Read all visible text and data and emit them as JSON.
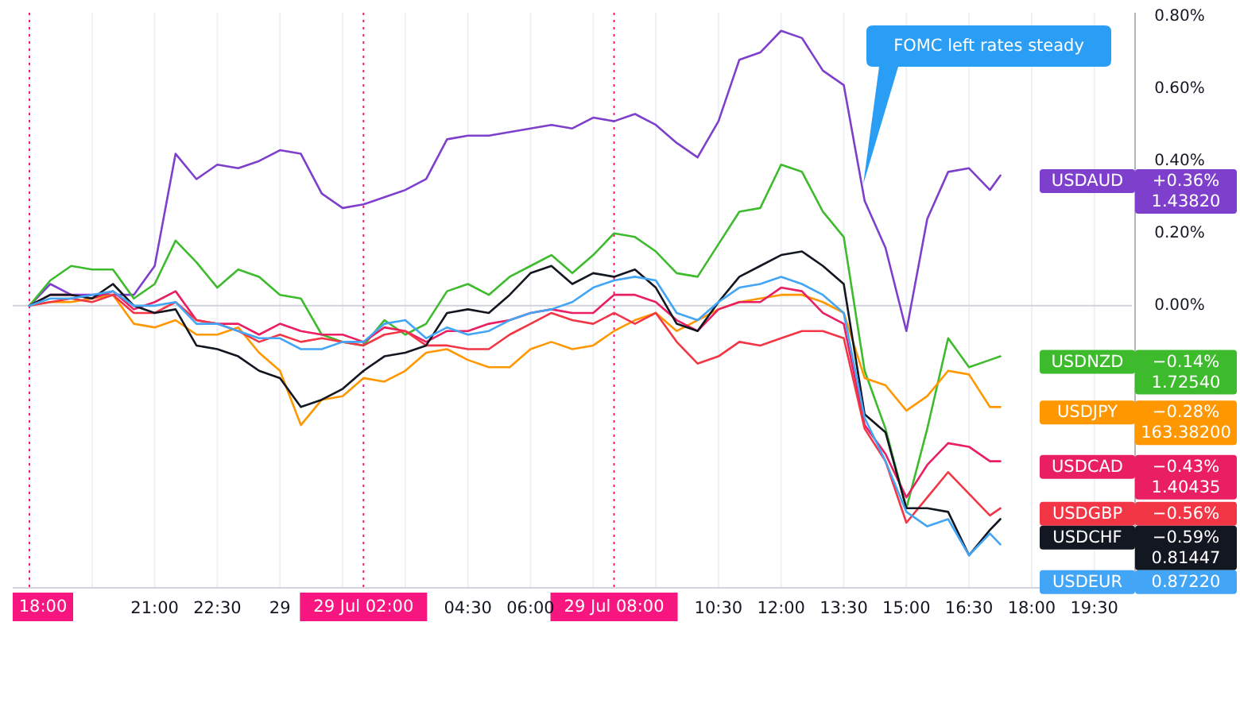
{
  "chart_data": {
    "type": "line",
    "x": [
      "--07-28T18:00",
      "--07-28T18:30",
      "--07-28T19:00",
      "--07-28T19:30",
      "--07-28T20:00",
      "--07-28T20:30",
      "--07-28T21:00",
      "--07-28T21:30",
      "--07-28T22:00",
      "--07-28T22:30",
      "--07-28T23:00",
      "--07-28T23:30",
      "--07-29T00:00",
      "--07-29T00:30",
      "--07-29T01:00",
      "--07-29T01:30",
      "--07-29T02:00",
      "--07-29T02:30",
      "--07-29T03:00",
      "--07-29T03:30",
      "--07-29T04:00",
      "--07-29T04:30",
      "--07-29T05:00",
      "--07-29T05:30",
      "--07-29T06:00",
      "--07-29T06:30",
      "--07-29T07:00",
      "--07-29T07:30",
      "--07-29T08:00",
      "--07-29T08:30",
      "--07-29T09:00",
      "--07-29T09:30",
      "--07-29T10:00",
      "--07-29T10:30",
      "--07-29T11:00",
      "--07-29T11:30",
      "--07-29T12:00",
      "--07-29T12:30",
      "--07-29T13:00",
      "--07-29T13:30",
      "--07-29T14:00",
      "--07-29T14:30",
      "--07-29T15:00",
      "--07-29T15:30",
      "--07-29T16:00",
      "--07-29T16:30",
      "--07-29T17:00",
      "--07-29T17:15"
    ],
    "xlim": [
      "--07-28T17:36",
      "--07-29T20:24"
    ],
    "xticks": [
      {
        "value": "--07-28T18:00",
        "label": null
      },
      {
        "value": "--07-28T19:30",
        "label": null
      },
      {
        "value": "--07-28T21:00",
        "label": "21:00"
      },
      {
        "value": "--07-28T22:30",
        "label": "22:30"
      },
      {
        "value": "--07-29T00:00",
        "label": "29"
      },
      {
        "value": "--07-29T01:30",
        "label": null
      },
      {
        "value": "--07-29T03:00",
        "label": null
      },
      {
        "value": "--07-29T04:30",
        "label": "04:30"
      },
      {
        "value": "--07-29T06:00",
        "label": "06:00"
      },
      {
        "value": "--07-29T07:30",
        "label": null
      },
      {
        "value": "--07-29T09:00",
        "label": null
      },
      {
        "value": "--07-29T10:30",
        "label": "10:30"
      },
      {
        "value": "--07-29T12:00",
        "label": "12:00"
      },
      {
        "value": "--07-29T13:30",
        "label": "13:30"
      },
      {
        "value": "--07-29T15:00",
        "label": "15:00"
      },
      {
        "value": "--07-29T16:30",
        "label": "16:30"
      },
      {
        "value": "--07-29T18:00",
        "label": "18:00"
      },
      {
        "value": "--07-29T19:30",
        "label": "19:30"
      }
    ],
    "ylim": [
      -0.78,
      0.81
    ],
    "yticks": [
      {
        "value": 0,
        "label": "0.00%"
      },
      {
        "value": 0.2,
        "label": "0.20%"
      },
      {
        "value": 0.4,
        "label": "0.40%"
      },
      {
        "value": 0.6,
        "label": "0.60%"
      },
      {
        "value": 0.8,
        "label": "0.80%"
      }
    ],
    "grid": "x",
    "ref_lines": [
      {
        "axis": "y",
        "value": 0,
        "label": null,
        "color": "#d0d3da"
      },
      {
        "axis": "x",
        "value": "--07-28T18:00",
        "label": "18:00",
        "color": "#f7157f",
        "line_style": "dotted"
      },
      {
        "axis": "x",
        "value": "--07-29T02:00",
        "label": "29 Jul 02:00",
        "color": "#f7157f",
        "line_style": "dotted"
      },
      {
        "axis": "x",
        "value": "--07-29T08:00",
        "label": "29 Jul 08:00",
        "color": "#f7157f",
        "line_style": "dotted"
      }
    ],
    "annotations": [
      "FOMC left rates steady",
      "+0.36%\n1.43820",
      "−0.14%\n1.72540",
      "−0.28%\n163.38200",
      "−0.43%\n1.40435",
      "−0.56%",
      "−0.59%\n0.81447",
      "0.87220"
    ],
    "series": [
      {
        "name": "USDAUD",
        "color": "#7e3fcc",
        "values": [
          0,
          0.06,
          0.03,
          0.03,
          0.03,
          0.03,
          0.11,
          0.42,
          0.35,
          0.39,
          0.38,
          0.4,
          0.43,
          0.42,
          0.31,
          0.27,
          0.28,
          0.3,
          0.32,
          0.35,
          0.46,
          0.47,
          0.47,
          0.48,
          0.49,
          0.5,
          0.49,
          0.52,
          0.51,
          0.53,
          0.5,
          0.45,
          0.41,
          0.51,
          0.68,
          0.7,
          0.76,
          0.74,
          0.65,
          0.61,
          0.29,
          0.16,
          -0.07,
          0.24,
          0.37,
          0.38,
          0.32,
          0.36
        ]
      },
      {
        "name": "USDNZD",
        "color": "#3dbb2c",
        "values": [
          0,
          0.07,
          0.11,
          0.1,
          0.1,
          0.02,
          0.06,
          0.18,
          0.12,
          0.05,
          0.1,
          0.08,
          0.03,
          0.02,
          -0.08,
          -0.1,
          -0.11,
          -0.04,
          -0.08,
          -0.05,
          0.04,
          0.06,
          0.03,
          0.08,
          0.11,
          0.14,
          0.09,
          0.14,
          0.2,
          0.19,
          0.15,
          0.09,
          0.08,
          0.17,
          0.26,
          0.27,
          0.39,
          0.37,
          0.26,
          0.19,
          -0.18,
          -0.34,
          -0.56,
          -0.34,
          -0.09,
          -0.17,
          -0.15,
          -0.14
        ]
      },
      {
        "name": "USDJPY",
        "color": "#ff9800",
        "values": [
          0,
          0.01,
          0.01,
          0.02,
          0.03,
          -0.05,
          -0.06,
          -0.04,
          -0.08,
          -0.08,
          -0.06,
          -0.13,
          -0.18,
          -0.33,
          -0.26,
          -0.25,
          -0.2,
          -0.21,
          -0.18,
          -0.13,
          -0.12,
          -0.15,
          -0.17,
          -0.17,
          -0.12,
          -0.1,
          -0.12,
          -0.11,
          -0.07,
          -0.04,
          -0.02,
          -0.07,
          -0.04,
          -0.01,
          0.01,
          0.02,
          0.03,
          0.03,
          0.01,
          -0.02,
          -0.2,
          -0.22,
          -0.29,
          -0.25,
          -0.18,
          -0.19,
          -0.28,
          -0.28
        ]
      },
      {
        "name": "USDCAD",
        "color": "#e91e63",
        "values": [
          0,
          0.03,
          0.03,
          0.02,
          0.04,
          -0.01,
          0.01,
          0.04,
          -0.04,
          -0.05,
          -0.05,
          -0.08,
          -0.05,
          -0.07,
          -0.08,
          -0.08,
          -0.1,
          -0.06,
          -0.07,
          -0.1,
          -0.07,
          -0.07,
          -0.05,
          -0.04,
          -0.02,
          -0.01,
          -0.02,
          -0.02,
          0.03,
          0.03,
          0.01,
          -0.04,
          -0.07,
          -0.01,
          0.01,
          0.01,
          0.05,
          0.04,
          -0.02,
          -0.05,
          -0.33,
          -0.41,
          -0.53,
          -0.44,
          -0.38,
          -0.39,
          -0.43,
          -0.43
        ]
      },
      {
        "name": "USDGBP",
        "color": "#f23645",
        "values": [
          0,
          0.01,
          0.02,
          0.01,
          0.03,
          -0.02,
          -0.02,
          0.01,
          -0.04,
          -0.05,
          -0.07,
          -0.1,
          -0.08,
          -0.1,
          -0.09,
          -0.1,
          -0.11,
          -0.08,
          -0.07,
          -0.11,
          -0.11,
          -0.12,
          -0.12,
          -0.08,
          -0.05,
          -0.02,
          -0.04,
          -0.05,
          -0.02,
          -0.05,
          -0.02,
          -0.1,
          -0.16,
          -0.14,
          -0.1,
          -0.11,
          -0.09,
          -0.07,
          -0.07,
          -0.09,
          -0.34,
          -0.43,
          -0.6,
          -0.53,
          -0.46,
          -0.52,
          -0.58,
          -0.56
        ]
      },
      {
        "name": "USDCHF",
        "color": "#131722",
        "values": [
          0,
          0.03,
          0.03,
          0.02,
          0.06,
          0,
          -0.02,
          -0.01,
          -0.11,
          -0.12,
          -0.14,
          -0.18,
          -0.2,
          -0.28,
          -0.26,
          -0.23,
          -0.18,
          -0.14,
          -0.13,
          -0.11,
          -0.02,
          -0.01,
          -0.02,
          0.03,
          0.09,
          0.11,
          0.06,
          0.09,
          0.08,
          0.1,
          0.05,
          -0.05,
          -0.07,
          0.01,
          0.08,
          0.11,
          0.14,
          0.15,
          0.11,
          0.06,
          -0.3,
          -0.35,
          -0.56,
          -0.56,
          -0.57,
          -0.69,
          -0.62,
          -0.59
        ]
      },
      {
        "name": "USDEUR",
        "color": "#42a5f5",
        "values": [
          0,
          0.02,
          0.02,
          0.03,
          0.04,
          0,
          0,
          0.01,
          -0.05,
          -0.05,
          -0.07,
          -0.09,
          -0.09,
          -0.12,
          -0.12,
          -0.1,
          -0.1,
          -0.05,
          -0.04,
          -0.09,
          -0.06,
          -0.08,
          -0.07,
          -0.04,
          -0.02,
          -0.01,
          0.01,
          0.05,
          0.07,
          0.08,
          0.07,
          -0.02,
          -0.04,
          0.01,
          0.05,
          0.06,
          0.08,
          0.06,
          0.03,
          -0.02,
          -0.31,
          -0.43,
          -0.57,
          -0.61,
          -0.59,
          -0.69,
          -0.63,
          -0.66
        ]
      }
    ]
  }
}
